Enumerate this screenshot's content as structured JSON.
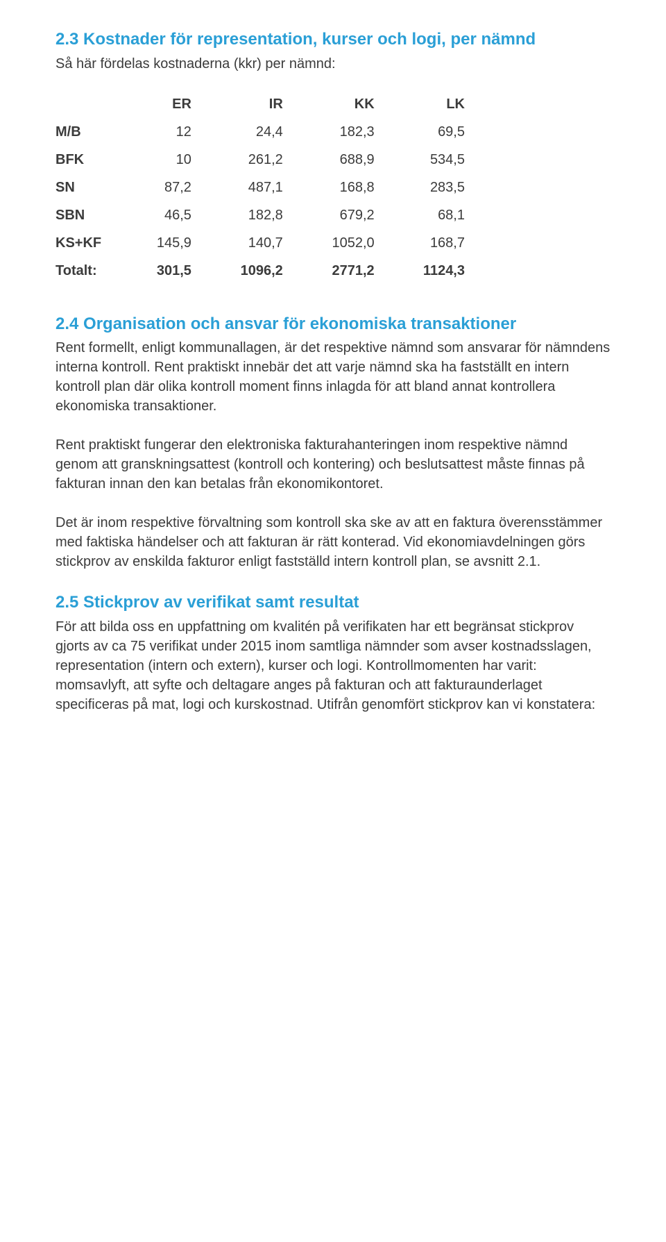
{
  "section23": {
    "title": "2.3 Kostnader för representation, kurser och logi, per nämnd",
    "intro": "Så här fördelas kostnaderna (kkr) per nämnd:",
    "columns": [
      "",
      "ER",
      "IR",
      "KK",
      "LK"
    ],
    "rows": [
      {
        "label": "M/B",
        "er": "12",
        "ir": "24,4",
        "kk": "182,3",
        "lk": "69,5"
      },
      {
        "label": "BFK",
        "er": "10",
        "ir": "261,2",
        "kk": "688,9",
        "lk": "534,5"
      },
      {
        "label": "SN",
        "er": "87,2",
        "ir": "487,1",
        "kk": "168,8",
        "lk": "283,5"
      },
      {
        "label": "SBN",
        "er": "46,5",
        "ir": "182,8",
        "kk": "679,2",
        "lk": "68,1"
      },
      {
        "label": "KS+KF",
        "er": "145,9",
        "ir": "140,7",
        "kk": "1052,0",
        "lk": "168,7"
      }
    ],
    "total": {
      "label": "Totalt:",
      "er": "301,5",
      "ir": "1096,2",
      "kk": "2771,2",
      "lk": "1124,3"
    }
  },
  "section24": {
    "title": "2.4 Organisation och ansvar för ekonomiska transaktioner",
    "p1": "Rent formellt, enligt kommunallagen, är det respektive nämnd som ansvarar för nämndens interna kontroll. Rent praktiskt innebär det att varje nämnd ska ha fastställt en intern kontroll plan där olika kontroll moment finns inlagda för att bland annat kontrollera ekonomiska transaktioner.",
    "p2": "Rent praktiskt fungerar den elektroniska fakturahanteringen inom respektive nämnd genom att granskningsattest (kontroll och kontering) och beslutsattest måste finnas på fakturan innan den kan betalas från ekonomikontoret.",
    "p3": "Det är inom respektive förvaltning som kontroll ska ske av att en faktura överensstämmer med faktiska händelser och att fakturan är rätt konterad. Vid ekonomiavdelningen görs stickprov av enskilda fakturor enligt fastställd intern kontroll plan, se avsnitt 2.1."
  },
  "section25": {
    "title": "2.5 Stickprov av verifikat samt resultat",
    "p1": "För att bilda oss en uppfattning om kvalitén på verifikaten har ett begränsat stickprov gjorts av ca 75 verifikat under 2015 inom samtliga nämnder som avser kostnadsslagen, representation (intern och extern), kurser och logi. Kontrollmomenten har varit: momsavlyft, att syfte och deltagare anges på fakturan och att fakturaunderlaget specificeras på mat, logi och kurskostnad. Utifrån genomfört stickprov kan vi konstatera:"
  }
}
